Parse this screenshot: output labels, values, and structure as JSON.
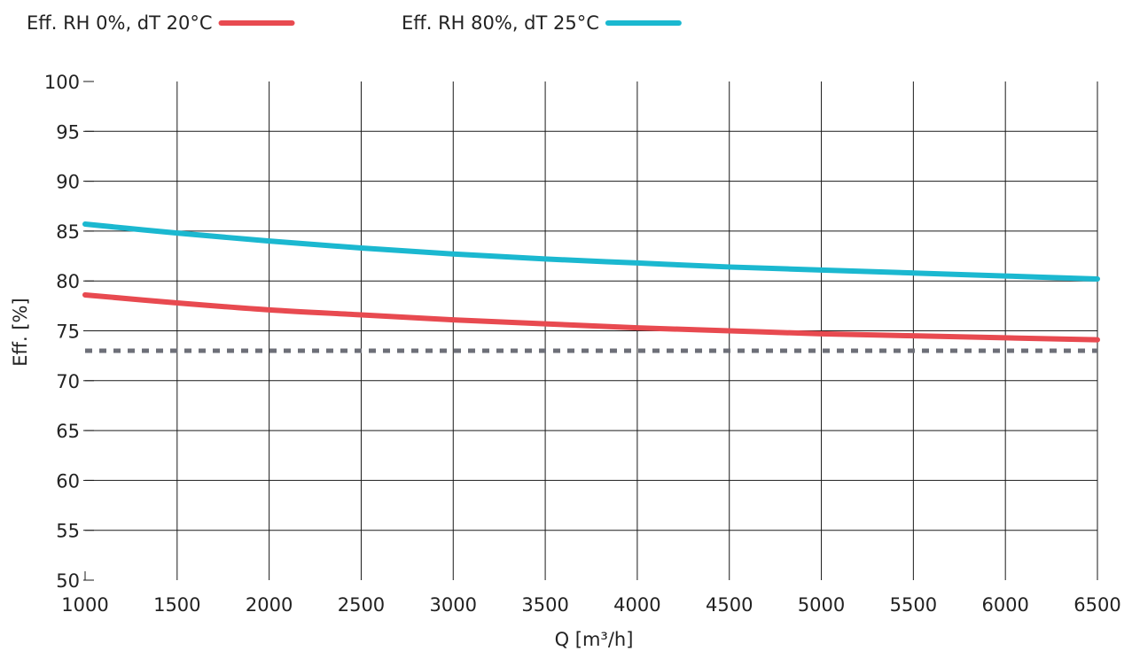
{
  "chart_data": {
    "type": "line",
    "title": "",
    "xlabel": "Q [m³/h]",
    "ylabel": "Eff.  [%]",
    "xlim": [
      1000,
      6500
    ],
    "ylim": [
      50,
      100
    ],
    "x_ticks": [
      "1000",
      "1500",
      "2000",
      "2500",
      "3000",
      "3500",
      "4000",
      "4500",
      "5000",
      "5500",
      "6000",
      "6500"
    ],
    "y_ticks": [
      "50",
      "55",
      "60",
      "65",
      "70",
      "75",
      "80",
      "85",
      "90",
      "95",
      "100"
    ],
    "grid": true,
    "legend": "top-left",
    "series": [
      {
        "name": "Eff. RH 0%, dT 20°C",
        "color": "#e84a50",
        "x": [
          1000,
          1500,
          2000,
          2500,
          3000,
          3500,
          4000,
          4500,
          5000,
          5500,
          6000,
          6500
        ],
        "y": [
          78.6,
          77.8,
          77.1,
          76.6,
          76.1,
          75.7,
          75.3,
          75.0,
          74.7,
          74.5,
          74.3,
          74.1
        ]
      },
      {
        "name": "Eff. RH 80%, dT 25°C",
        "color": "#1bb8d0",
        "x": [
          1000,
          1500,
          2000,
          2500,
          3000,
          3500,
          4000,
          4500,
          5000,
          5500,
          6000,
          6500
        ],
        "y": [
          85.7,
          84.8,
          84.0,
          83.3,
          82.7,
          82.2,
          81.8,
          81.4,
          81.1,
          80.8,
          80.5,
          80.2
        ]
      },
      {
        "color": "#6d6f78",
        "dashed": true,
        "x": [
          1000,
          6500
        ],
        "y": [
          73.0,
          73.0
        ]
      }
    ]
  }
}
